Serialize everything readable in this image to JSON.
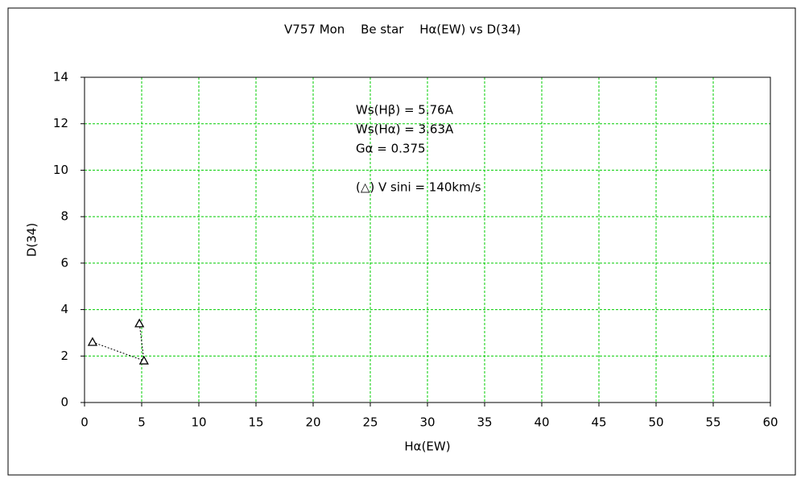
{
  "chart_data": {
    "type": "line",
    "title": "V757 Mon　 Be star　 Hα(EW) vs D(34)",
    "x_label": "Hα(EW)",
    "y_label": "D(34)",
    "x": [
      0.7,
      5.2,
      4.8
    ],
    "values": [
      2.6,
      1.8,
      3.4
    ],
    "marker": "triangle",
    "line_style": "dotted",
    "color": "#000000",
    "grid": true,
    "grid_color": "#00cc00",
    "xlim": [
      0,
      60
    ],
    "xticks": [
      0,
      5,
      10,
      15,
      20,
      25,
      30,
      35,
      40,
      45,
      50,
      55,
      60
    ],
    "ylim": [
      0,
      14
    ],
    "yticks": [
      0,
      2,
      4,
      6,
      8,
      10,
      12,
      14
    ],
    "annotations": [
      "Ws(Hβ) = 5.76A",
      "Ws(Hα) = 3.63A",
      "Gα = 0.375",
      "(△) V sini = 140km/s"
    ]
  }
}
